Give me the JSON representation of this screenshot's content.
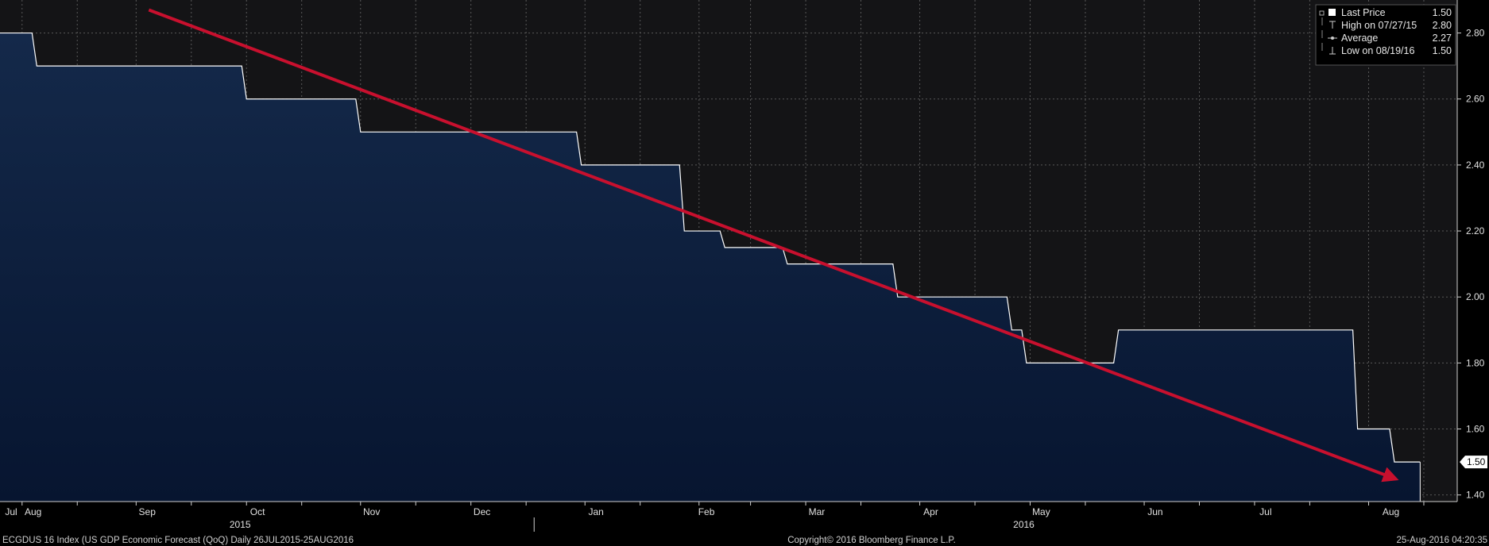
{
  "chart_data": {
    "type": "area",
    "title": "",
    "xlabel": "",
    "ylabel": "",
    "ylim": [
      1.38,
      2.9
    ],
    "y_ticks": [
      "1.40",
      "1.60",
      "1.80",
      "2.00",
      "2.20",
      "2.40",
      "2.60",
      "2.80"
    ],
    "grid": true,
    "legend_position": "top-right",
    "x_range": [
      "2015-07-26",
      "2016-08-25"
    ],
    "months": [
      {
        "label": "Jul",
        "date": "2015-07-26"
      },
      {
        "label": "Aug",
        "date": "2015-08-01"
      },
      {
        "label": "Sep",
        "date": "2015-09-01"
      },
      {
        "label": "Oct",
        "date": "2015-10-01"
      },
      {
        "label": "Nov",
        "date": "2015-11-01"
      },
      {
        "label": "Dec",
        "date": "2015-12-01"
      },
      {
        "label": "Jan",
        "date": "2016-01-01"
      },
      {
        "label": "Feb",
        "date": "2016-02-01"
      },
      {
        "label": "Mar",
        "date": "2016-03-01"
      },
      {
        "label": "Apr",
        "date": "2016-04-01"
      },
      {
        "label": "May",
        "date": "2016-05-01"
      },
      {
        "label": "Jun",
        "date": "2016-06-01"
      },
      {
        "label": "Jul",
        "date": "2016-07-01"
      },
      {
        "label": "Aug",
        "date": "2016-08-01"
      }
    ],
    "years": [
      {
        "label": "2015",
        "date": "2015-10-01"
      },
      {
        "label": "2016",
        "date": "2016-05-01"
      }
    ],
    "year_divider_date": "2016-01-01",
    "series": [
      {
        "name": "Last Price",
        "color": "#ffffff",
        "fill_top": "#14294a",
        "fill_bottom": "#071530",
        "points": [
          [
            "2015-07-26",
            2.8
          ],
          [
            "2015-08-05",
            2.7
          ],
          [
            "2015-10-01",
            2.6
          ],
          [
            "2015-11-01",
            2.5
          ],
          [
            "2015-12-31",
            2.4
          ],
          [
            "2016-01-28",
            2.2
          ],
          [
            "2016-02-08",
            2.15
          ],
          [
            "2016-02-25",
            2.1
          ],
          [
            "2016-03-26",
            2.0
          ],
          [
            "2016-04-26",
            1.9
          ],
          [
            "2016-04-30",
            1.8
          ],
          [
            "2016-05-25",
            1.9
          ],
          [
            "2016-07-29",
            1.6
          ],
          [
            "2016-08-08",
            1.5
          ],
          [
            "2016-08-15",
            1.5
          ]
        ]
      }
    ],
    "last_value_marker": "1.50",
    "annotation_arrow": {
      "color": "#c8102e",
      "start": [
        "2015-09-01",
        2.87
      ],
      "end": [
        "2016-08-08",
        1.45
      ]
    },
    "legend": [
      {
        "label": "Last Price",
        "value": "1.50",
        "symbol": "square"
      },
      {
        "label": "High on 07/27/15",
        "value": "2.80",
        "symbol": "high"
      },
      {
        "label": "Average",
        "value": "2.27",
        "symbol": "average"
      },
      {
        "label": "Low on 08/19/16",
        "value": "1.50",
        "symbol": "low"
      }
    ]
  },
  "footer": {
    "left": "ECGDUS 16 Index (US GDP Economic Forecast (QoQ)  Daily 26JUL2015-25AUG2016",
    "center": "Copyright© 2016 Bloomberg Finance L.P.",
    "right": "25-Aug-2016 04:20:35"
  },
  "colors": {
    "background": "#000000",
    "plot_background": "#141416",
    "grid": "#5a5a5a",
    "axis_panel": "#000000",
    "footer_background": "#000000"
  }
}
